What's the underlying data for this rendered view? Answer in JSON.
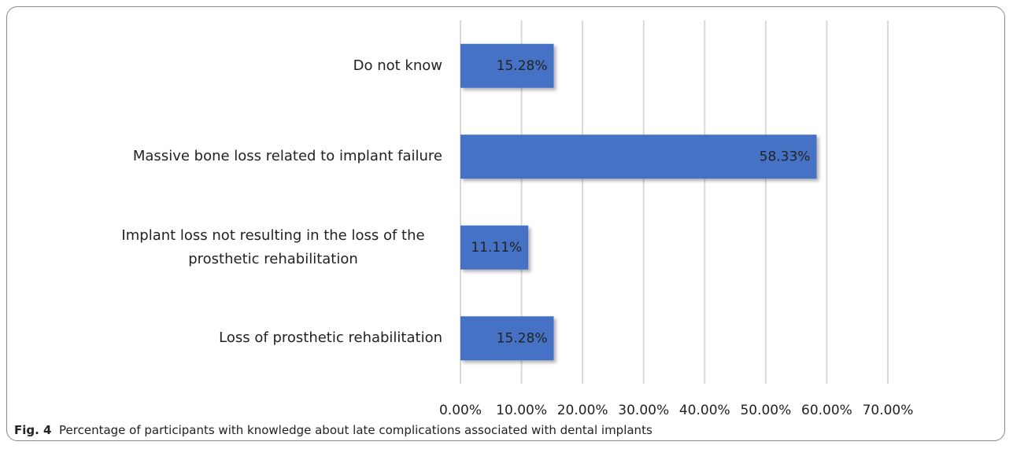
{
  "chart_data": {
    "type": "bar",
    "orientation": "horizontal",
    "categories": [
      "Do not know",
      "Massive bone loss related to implant failure",
      "Implant loss not resulting in the loss of the prosthetic rehabilitation",
      "Loss of prosthetic rehabilitation"
    ],
    "values": [
      15.28,
      58.33,
      11.11,
      15.28
    ],
    "value_labels": [
      "15.28%",
      "58.33%",
      "11.11%",
      "15.28%"
    ],
    "color": "#4472c4",
    "xlim": [
      0,
      70
    ],
    "xticks": [
      {
        "value": 0,
        "label": "0.00%"
      },
      {
        "value": 10,
        "label": "10.00%"
      },
      {
        "value": 20,
        "label": "20.00%"
      },
      {
        "value": 30,
        "label": "30.00%"
      },
      {
        "value": 40,
        "label": "40.00%"
      },
      {
        "value": 50,
        "label": "50.00%"
      },
      {
        "value": 60,
        "label": "60.00%"
      },
      {
        "value": 70,
        "label": "70.00%"
      }
    ],
    "grid": true,
    "caption_label": "Fig. 4",
    "caption": "Percentage of participants with knowledge about late complications associated with dental implants"
  }
}
